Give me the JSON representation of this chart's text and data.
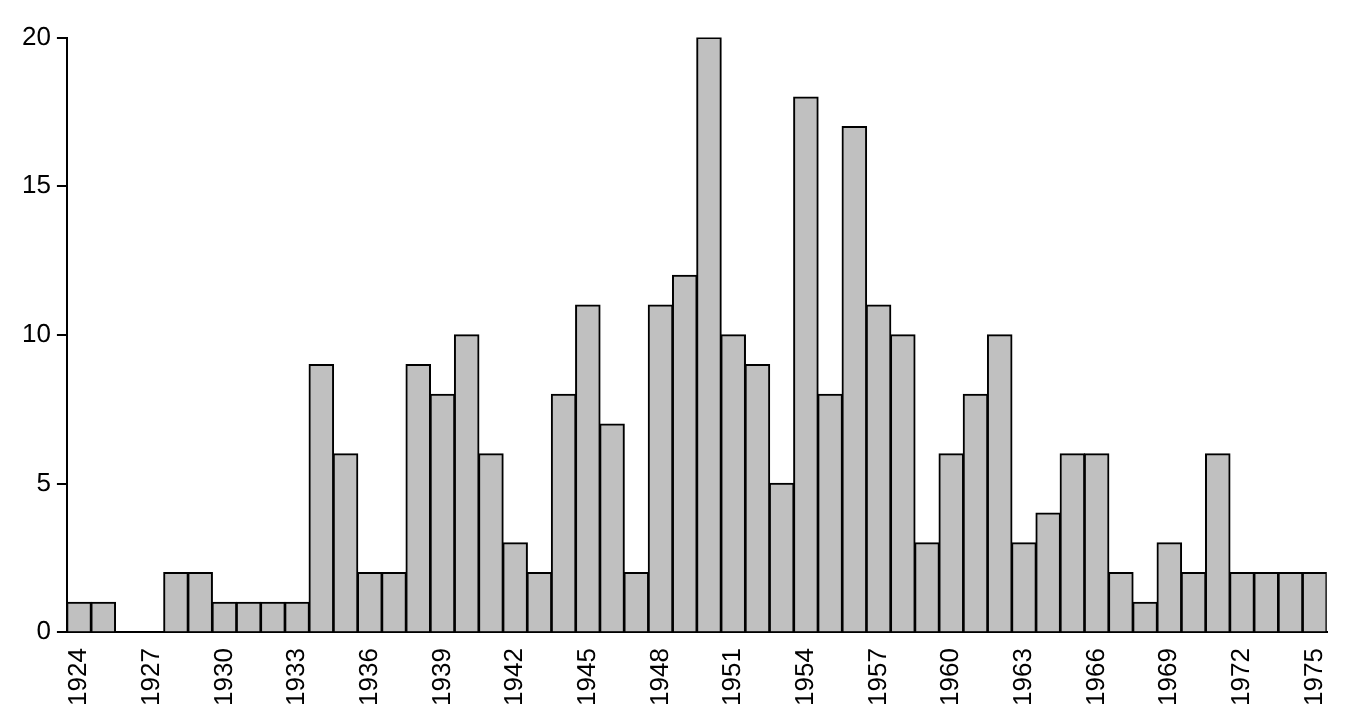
{
  "chart_data": {
    "type": "bar",
    "categories": [
      "1924",
      null,
      null,
      "1927",
      null,
      null,
      "1930",
      null,
      null,
      "1933",
      null,
      null,
      "1936",
      null,
      null,
      "1939",
      null,
      null,
      "1942",
      null,
      null,
      "1945",
      null,
      null,
      "1948",
      null,
      null,
      "1951",
      null,
      null,
      "1954",
      null,
      null,
      "1957",
      null,
      null,
      "1960",
      null,
      null,
      "1963",
      null,
      null,
      "1966",
      null,
      null,
      "1969",
      null,
      null,
      "1972",
      null,
      null,
      "1975"
    ],
    "values": [
      1,
      1,
      0,
      0,
      2,
      2,
      1,
      1,
      1,
      1,
      9,
      6,
      2,
      2,
      9,
      8,
      10,
      6,
      3,
      2,
      8,
      11,
      7,
      2,
      11,
      12,
      20,
      10,
      9,
      5,
      18,
      8,
      17,
      11,
      10,
      3,
      6,
      8,
      10,
      3,
      4,
      6,
      6,
      2,
      1,
      3,
      2,
      6,
      2,
      2,
      2,
      2
    ],
    "color": "#c0c0c0",
    "ylim": [
      0,
      20
    ],
    "yticks": [
      0,
      5,
      10,
      15,
      20
    ],
    "grid": false,
    "legend": false
  }
}
